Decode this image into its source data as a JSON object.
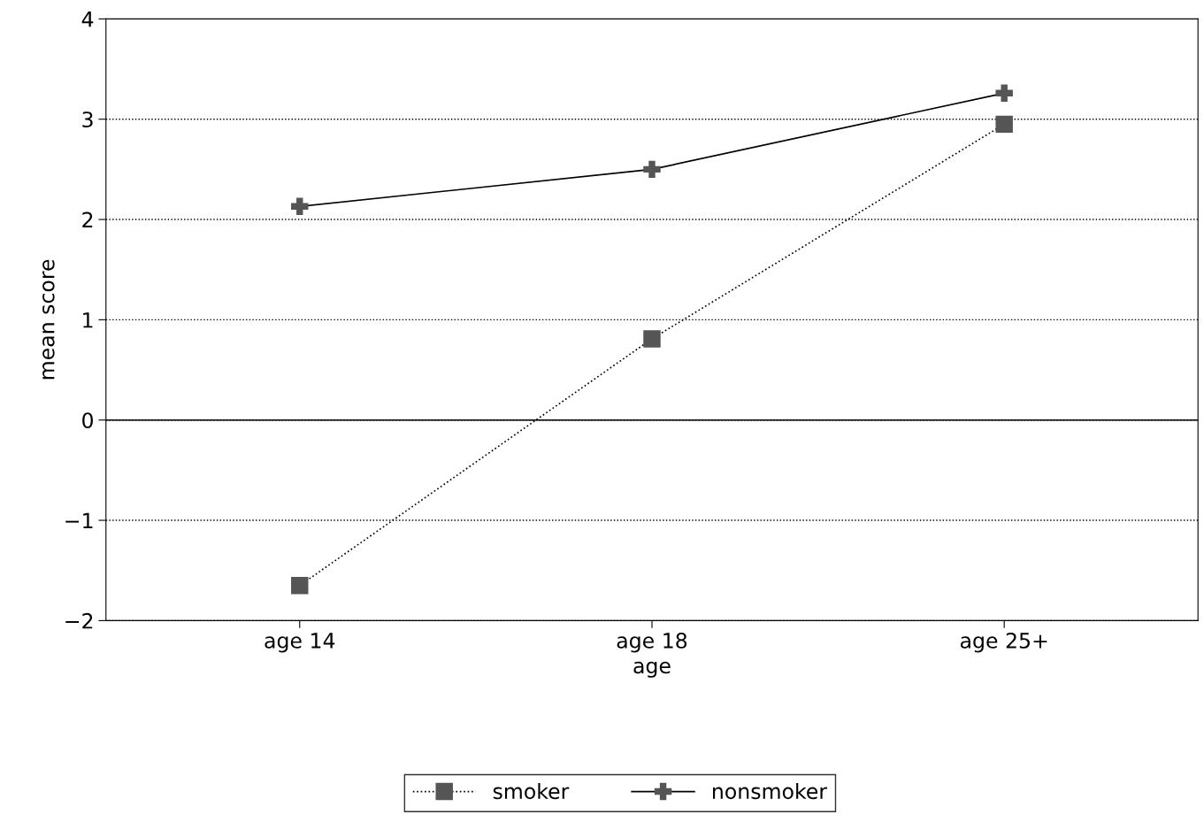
{
  "chart_data": {
    "type": "line",
    "xlabel": "age",
    "ylabel": "mean score",
    "categories": [
      "age 14",
      "age 18",
      "age 25+"
    ],
    "series": [
      {
        "name": "smoker",
        "color": "#555555",
        "marker": "square",
        "line_style": "dotted",
        "values": [
          -1.65,
          0.81,
          2.95
        ]
      },
      {
        "name": "nonsmoker",
        "color": "#555555",
        "marker": "cross",
        "line_style": "solid",
        "values": [
          2.13,
          2.5,
          3.26
        ]
      }
    ],
    "ylim": [
      -2,
      4
    ],
    "yticks": [
      {
        "value": -2,
        "label": "−2"
      },
      {
        "value": -1,
        "label": "−1"
      },
      0,
      1,
      2,
      3,
      4
    ],
    "grid": "y",
    "ref_lines": [
      {
        "axis": "y",
        "value": 0,
        "label": null,
        "color": "#000000",
        "line_style": "solid"
      }
    ],
    "legend": "bottom"
  }
}
